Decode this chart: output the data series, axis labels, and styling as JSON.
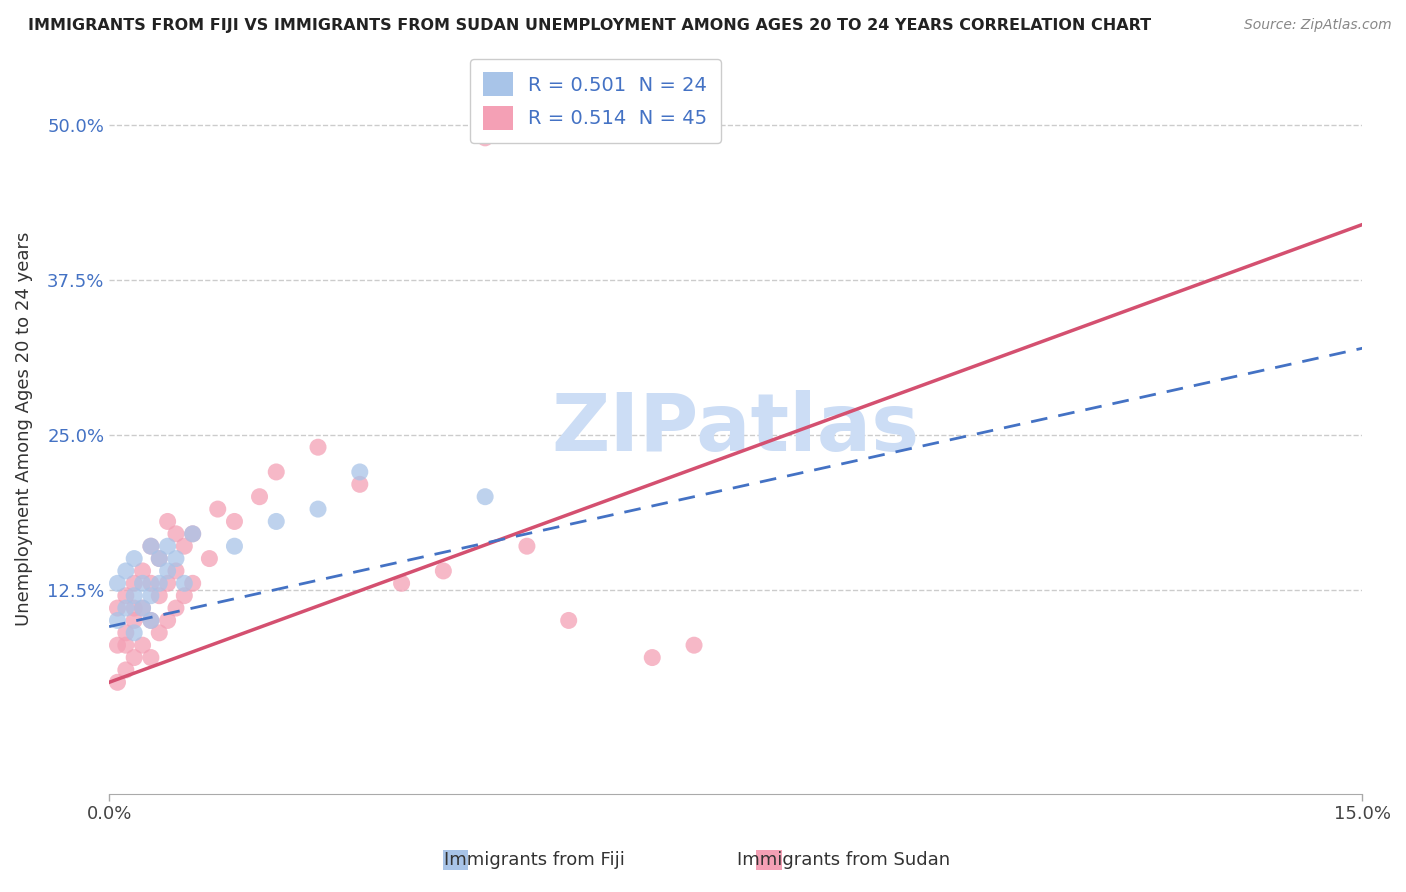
{
  "title": "IMMIGRANTS FROM FIJI VS IMMIGRANTS FROM SUDAN UNEMPLOYMENT AMONG AGES 20 TO 24 YEARS CORRELATION CHART",
  "source": "Source: ZipAtlas.com",
  "ylabel": "Unemployment Among Ages 20 to 24 years",
  "xlabel_fiji": "Immigrants from Fiji",
  "xlabel_sudan": "Immigrants from Sudan",
  "fiji_R": 0.501,
  "fiji_N": 24,
  "sudan_R": 0.514,
  "sudan_N": 45,
  "xlim": [
    0.0,
    0.15
  ],
  "ylim": [
    -0.04,
    0.55
  ],
  "fiji_color": "#a8c4e8",
  "sudan_color": "#f4a0b5",
  "fiji_line_color": "#4472c4",
  "sudan_line_color": "#d45070",
  "watermark": "ZIPatlas",
  "watermark_color": "#ccddf5",
  "fiji_scatter_x": [
    0.001,
    0.001,
    0.002,
    0.002,
    0.003,
    0.003,
    0.003,
    0.004,
    0.004,
    0.005,
    0.005,
    0.005,
    0.006,
    0.006,
    0.007,
    0.007,
    0.008,
    0.009,
    0.01,
    0.015,
    0.02,
    0.025,
    0.03,
    0.045
  ],
  "fiji_scatter_y": [
    0.1,
    0.13,
    0.11,
    0.14,
    0.09,
    0.12,
    0.15,
    0.11,
    0.13,
    0.1,
    0.12,
    0.16,
    0.13,
    0.15,
    0.14,
    0.16,
    0.15,
    0.13,
    0.17,
    0.16,
    0.18,
    0.19,
    0.22,
    0.2
  ],
  "sudan_scatter_x": [
    0.001,
    0.001,
    0.001,
    0.002,
    0.002,
    0.002,
    0.002,
    0.003,
    0.003,
    0.003,
    0.003,
    0.004,
    0.004,
    0.004,
    0.005,
    0.005,
    0.005,
    0.005,
    0.006,
    0.006,
    0.006,
    0.007,
    0.007,
    0.007,
    0.008,
    0.008,
    0.008,
    0.009,
    0.009,
    0.01,
    0.01,
    0.012,
    0.013,
    0.015,
    0.018,
    0.02,
    0.025,
    0.03,
    0.035,
    0.04,
    0.045,
    0.05,
    0.055,
    0.065,
    0.07
  ],
  "sudan_scatter_y": [
    0.05,
    0.08,
    0.11,
    0.06,
    0.09,
    0.12,
    0.08,
    0.07,
    0.1,
    0.13,
    0.11,
    0.08,
    0.11,
    0.14,
    0.07,
    0.1,
    0.13,
    0.16,
    0.09,
    0.12,
    0.15,
    0.1,
    0.13,
    0.18,
    0.11,
    0.14,
    0.17,
    0.12,
    0.16,
    0.13,
    0.17,
    0.15,
    0.19,
    0.18,
    0.2,
    0.22,
    0.24,
    0.21,
    0.13,
    0.14,
    0.49,
    0.16,
    0.1,
    0.07,
    0.08
  ],
  "yticks": [
    0.125,
    0.25,
    0.375,
    0.5
  ],
  "ytick_labels": [
    "12.5%",
    "25.0%",
    "37.5%",
    "50.0%"
  ],
  "xticks": [
    0.0,
    0.15
  ],
  "xtick_labels": [
    "0.0%",
    "15.0%"
  ],
  "fiji_line_x0": 0.0,
  "fiji_line_y0": 0.095,
  "fiji_line_x1": 0.15,
  "fiji_line_y1": 0.32,
  "sudan_line_x0": 0.0,
  "sudan_line_y0": 0.05,
  "sudan_line_x1": 0.15,
  "sudan_line_y1": 0.42,
  "background_color": "#ffffff",
  "grid_color": "#cccccc"
}
